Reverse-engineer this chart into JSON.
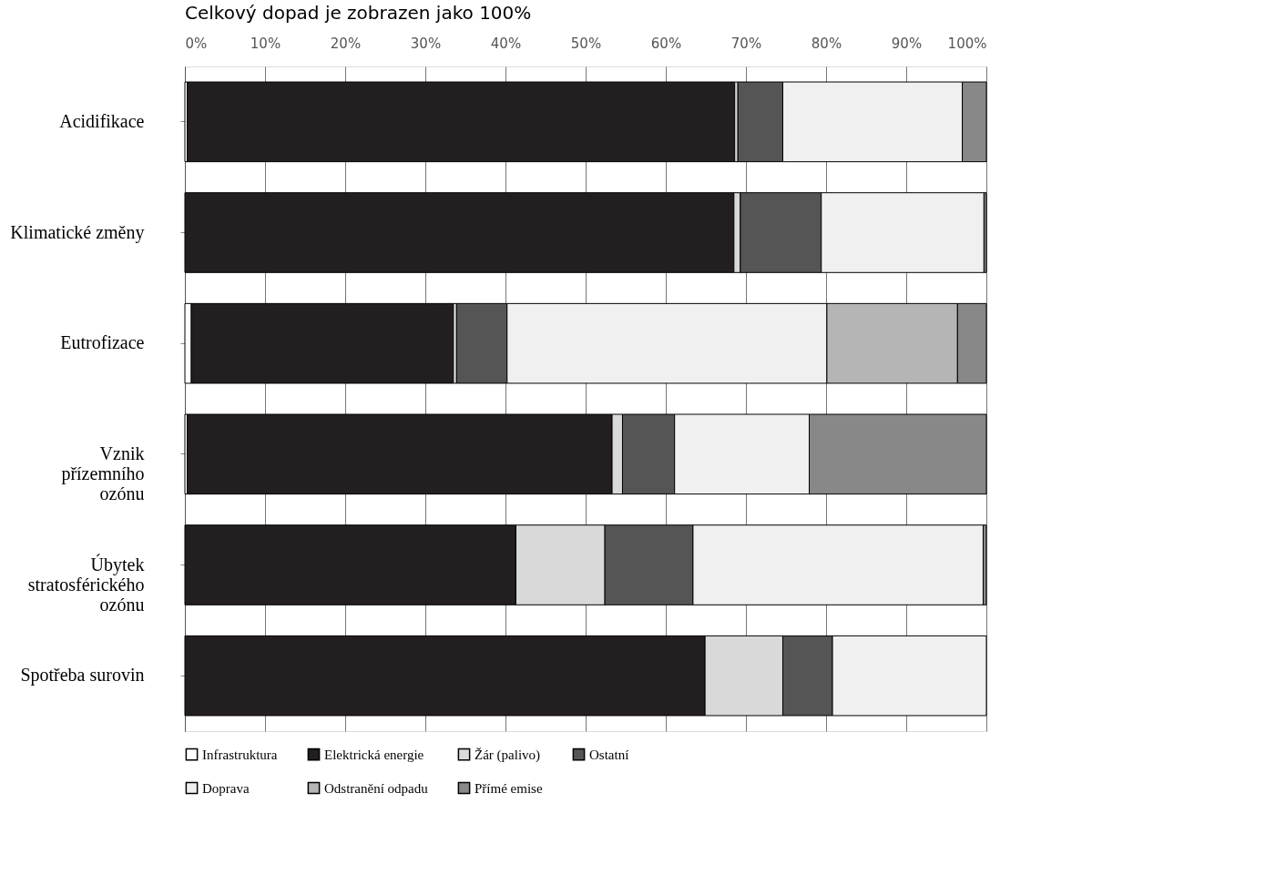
{
  "chart_data": {
    "type": "bar",
    "orientation": "horizontal",
    "stacked": true,
    "title": "Celkový dopad je zobrazen jako 100%",
    "categories": [
      "Acidifikace",
      "Klimatické změny",
      "Eutrofizace",
      "Vznik přízemního ozónu",
      "Úbytek stratosférického ozónu",
      "Spotřeba surovin"
    ],
    "series": [
      {
        "name": "Infrastruktura",
        "color": "#ffffff",
        "values": [
          0.3,
          0,
          0.8,
          0.3,
          0,
          0
        ]
      },
      {
        "name": "Elektrická energie",
        "color": "#231f20",
        "values": [
          68.3,
          68.5,
          32.7,
          53.0,
          41.3,
          64.9
        ]
      },
      {
        "name": "Žár (palivo)",
        "color": "#d9d9d9",
        "values": [
          0.4,
          0.8,
          0.4,
          1.3,
          11.1,
          9.7
        ]
      },
      {
        "name": "Ostatní",
        "color": "#555555",
        "values": [
          5.6,
          10.1,
          6.3,
          6.5,
          11.0,
          6.2
        ]
      },
      {
        "name": "Doprava",
        "color": "#f0f0f0",
        "values": [
          22.4,
          20.3,
          39.9,
          16.8,
          36.2,
          19.2
        ]
      },
      {
        "name": "Odstranění odpadu",
        "color": "#b5b5b5",
        "values": [
          0,
          0,
          16.3,
          0,
          0,
          0
        ]
      },
      {
        "name": "Přímé emise",
        "color": "#888888",
        "values": [
          3.0,
          0.3,
          3.6,
          22.1,
          0.4,
          0
        ]
      }
    ],
    "xlim": [
      0,
      100
    ],
    "xticks": [
      {
        "value": 0,
        "label": "0%"
      },
      {
        "value": 10,
        "label": "10%"
      },
      {
        "value": 20,
        "label": "20%"
      },
      {
        "value": 30,
        "label": "30%"
      },
      {
        "value": 40,
        "label": "40%"
      },
      {
        "value": 50,
        "label": "50%"
      },
      {
        "value": 60,
        "label": "60%"
      },
      {
        "value": 70,
        "label": "70%"
      },
      {
        "value": 80,
        "label": "80%"
      },
      {
        "value": 90,
        "label": "90%"
      },
      {
        "value": 100,
        "label": "100%"
      }
    ],
    "grid": "x",
    "legend": "bottom"
  }
}
